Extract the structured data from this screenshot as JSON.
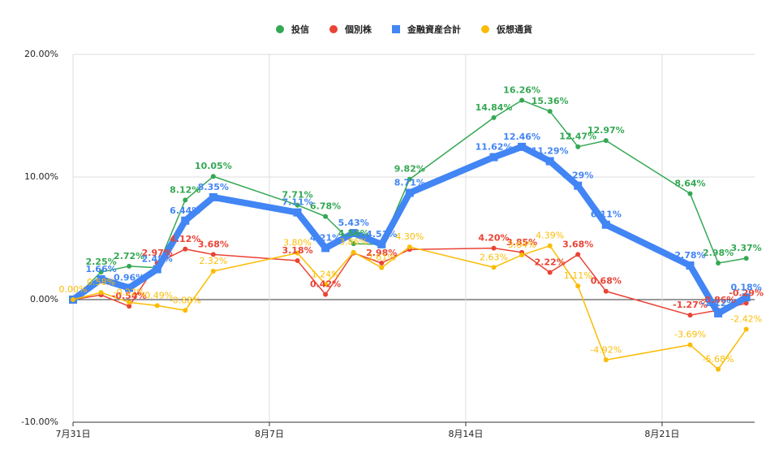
{
  "chart_data": {
    "type": "line",
    "x": [
      0,
      1,
      2,
      3,
      4,
      5,
      8,
      9,
      10,
      11,
      12,
      15,
      16,
      17,
      18,
      19,
      22,
      23,
      24
    ],
    "xlim": [
      0,
      24.3
    ],
    "xticks": [
      {
        "value": 0,
        "label": "7月31日"
      },
      {
        "value": 7,
        "label": "8月7日"
      },
      {
        "value": 14,
        "label": "8月14日"
      },
      {
        "value": 21,
        "label": "8月21日"
      }
    ],
    "ylim": [
      -10,
      20
    ],
    "yticks": [
      {
        "value": -10,
        "label": "-10.00%"
      },
      {
        "value": 0,
        "label": "0.00%"
      },
      {
        "value": 10,
        "label": "10.00%"
      },
      {
        "value": 20,
        "label": "20.00%"
      }
    ],
    "grid": true,
    "legend": "top",
    "series": [
      {
        "name": "投信",
        "color": "#34a853",
        "marker": "circle",
        "width": 1.5,
        "values": [
          0,
          2.25,
          2.72,
          2.6,
          8.12,
          10.05,
          7.71,
          6.78,
          4.56,
          4.5,
          9.82,
          14.84,
          16.26,
          15.36,
          12.47,
          12.97,
          8.64,
          2.98,
          3.37
        ],
        "value_labels": [
          null,
          "2.25%",
          "2.72%",
          null,
          "8.12%",
          "10.05%",
          "7.71%",
          "6.78%",
          "4.56%",
          null,
          "9.82%",
          "14.84%",
          "16.26%",
          "15.36%",
          "12.47%",
          "12.97%",
          "8.64%",
          "2.98%",
          "3.37%"
        ]
      },
      {
        "name": "個別株",
        "color": "#ea4335",
        "marker": "circle",
        "width": 1.5,
        "values": [
          0,
          0.38,
          -0.54,
          2.97,
          4.12,
          3.68,
          3.18,
          0.42,
          3.8,
          2.98,
          4.09,
          4.2,
          3.85,
          2.22,
          3.68,
          0.68,
          -1.27,
          -0.86,
          -0.29
        ],
        "value_labels": [
          null,
          null,
          "-0.54%",
          "2.97%",
          "4.12%",
          "3.68%",
          "3.18%",
          "0.42%",
          null,
          "2.98%",
          null,
          "4.20%",
          "3.85%",
          "2.22%",
          "3.68%",
          "0.68%",
          "-1.27%",
          "-0.86%",
          "-0.29%"
        ]
      },
      {
        "name": "金融資産合計",
        "color": "#4285f4",
        "marker": "square",
        "width": 8,
        "values": [
          0,
          1.66,
          0.96,
          2.48,
          6.44,
          8.35,
          7.11,
          4.21,
          5.43,
          4.51,
          8.71,
          11.62,
          12.46,
          11.29,
          9.29,
          6.11,
          2.78,
          -1.12,
          0.18
        ],
        "value_labels": [
          null,
          "1.66%",
          "0.96%",
          "2.48%",
          "6.44%",
          "8.35%",
          "7.11%",
          "4.21%",
          "5.43%",
          "4.51%",
          "8.71%",
          "11.62%",
          "12.46%",
          "11.29%",
          "9.29%",
          "6.11%",
          "2.78%",
          "-1.12%",
          "0.18%"
        ]
      },
      {
        "name": "仮想通貨",
        "color": "#fbbc04",
        "marker": "circle",
        "width": 1.5,
        "values": [
          0,
          0.58,
          -0.22,
          -0.49,
          -0.88,
          2.32,
          3.8,
          1.24,
          3.86,
          2.61,
          4.3,
          2.63,
          3.64,
          4.39,
          1.11,
          -4.92,
          -3.69,
          -5.68,
          -2.42
        ],
        "value_labels": [
          "0.00%",
          "0.58%",
          "-0.22%",
          "-0.49%",
          "-0.88%",
          "2.32%",
          "3.80%",
          "1.24%",
          "3.86%",
          "2.61%",
          "4.30%",
          "2.63%",
          "3.64%",
          "4.39%",
          "1.11%",
          "-4.92%",
          "-3.69%",
          "-5.68%",
          "-2.42%"
        ]
      }
    ]
  }
}
